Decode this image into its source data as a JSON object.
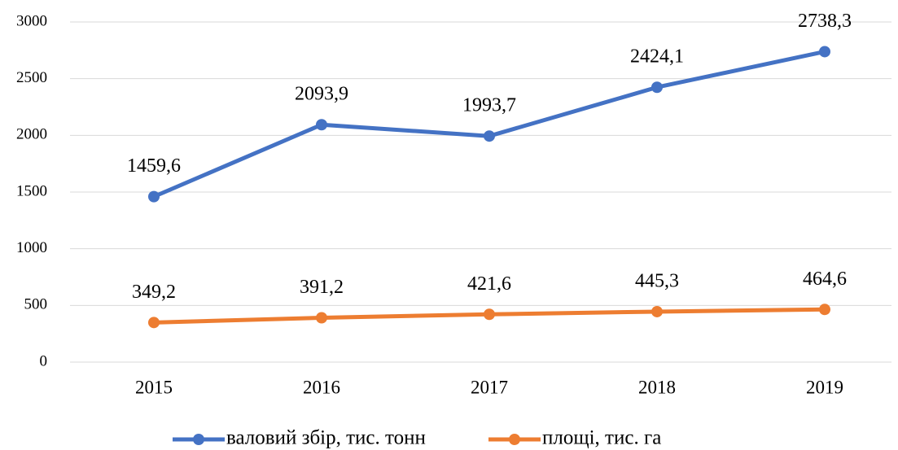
{
  "chart_data": {
    "type": "line",
    "categories": [
      "2015",
      "2016",
      "2017",
      "2018",
      "2019"
    ],
    "series": [
      {
        "name": "валовий збір, тис. тонн",
        "color": "#4472c4",
        "values": [
          1459.6,
          2093.9,
          1993.7,
          2424.1,
          2738.3
        ],
        "value_labels": [
          "1459,6",
          "2093,9",
          "1993,7",
          "2424,1",
          "2738,3"
        ]
      },
      {
        "name": "площі, тис. га",
        "color": "#ed7d31",
        "values": [
          349.2,
          391.2,
          421.6,
          445.3,
          464.6
        ],
        "value_labels": [
          "349,2",
          "391,2",
          "421,6",
          "445,3",
          "464,6"
        ]
      }
    ],
    "ylim": [
      0,
      3000
    ],
    "yticks": [
      0,
      500,
      1000,
      1500,
      2000,
      2500,
      3000
    ],
    "grid": true,
    "legend": "bottom"
  }
}
